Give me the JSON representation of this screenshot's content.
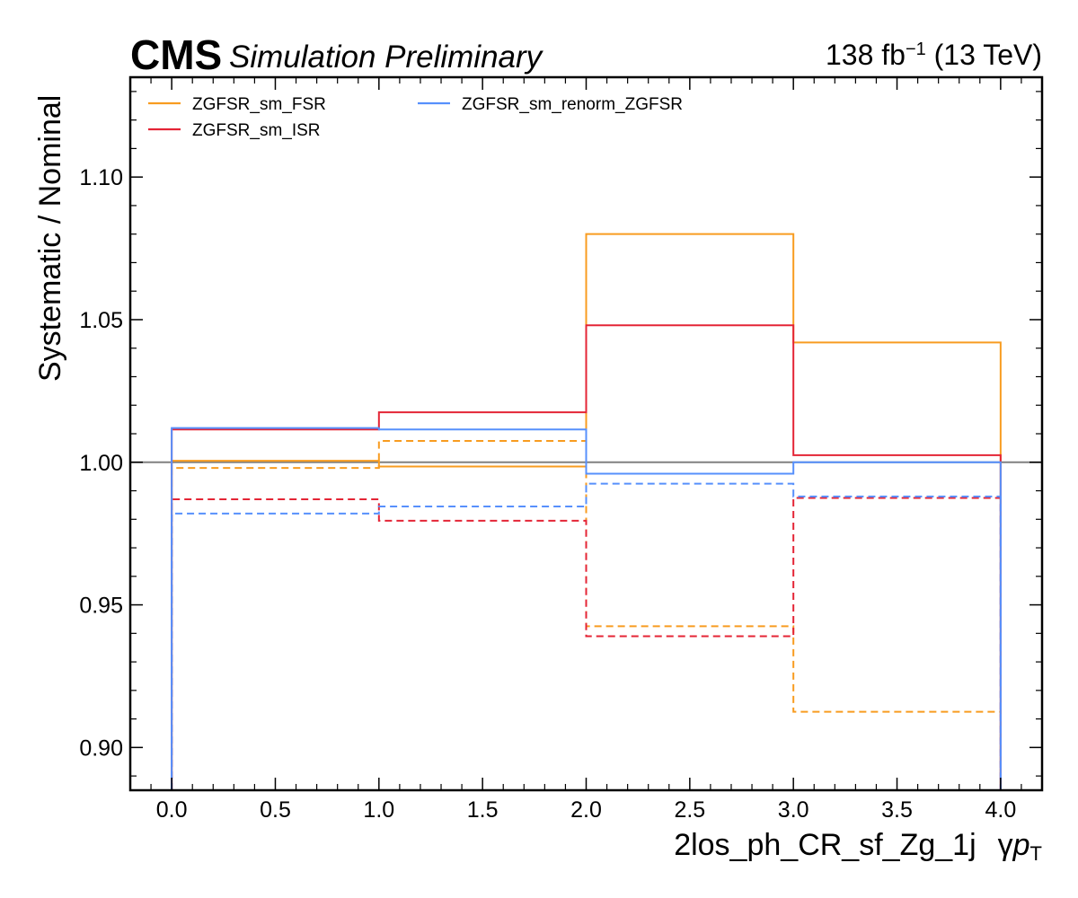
{
  "header": {
    "experiment": "CMS",
    "status": "Simulation Preliminary",
    "lumi_value": "138 fb",
    "lumi_exponent": "−1",
    "energy": " (13 TeV)"
  },
  "chart_data": {
    "type": "line",
    "step": true,
    "xlabel": "2los_ph_CR_sf_Zg_1j",
    "xlabel_variable": "γ",
    "xlabel_variable_italic": "p",
    "xlabel_variable_subscript": "T",
    "ylabel": "Systematic / Nominal",
    "xlim": [
      -0.2,
      4.2
    ],
    "ylim": [
      0.885,
      1.135
    ],
    "xticks": [
      0.0,
      0.5,
      1.0,
      1.5,
      2.0,
      2.5,
      3.0,
      3.5,
      4.0
    ],
    "xtick_labels": [
      "0.0",
      "0.5",
      "1.0",
      "1.5",
      "2.0",
      "2.5",
      "3.0",
      "3.5",
      "4.0"
    ],
    "yticks": [
      0.9,
      0.95,
      1.0,
      1.05,
      1.1
    ],
    "ytick_labels": [
      "0.90",
      "0.95",
      "1.00",
      "1.05",
      "1.10"
    ],
    "bin_edges": [
      0,
      1,
      2,
      3,
      4
    ],
    "reference_line": {
      "y": 1.0,
      "color": "#808080"
    },
    "legend_position": "top-left",
    "grid": false,
    "series": [
      {
        "name": "ZGFSR_sm_FSR",
        "color": "#f89c20",
        "up": [
          1.0005,
          0.9985,
          1.08,
          1.042
        ],
        "down": [
          0.998,
          1.0075,
          0.9425,
          0.9125
        ]
      },
      {
        "name": "ZGFSR_sm_ISR",
        "color": "#e42536",
        "up": [
          1.0115,
          1.0175,
          1.048,
          1.0025
        ],
        "down": [
          0.987,
          0.9795,
          0.939,
          0.9875
        ]
      },
      {
        "name": "ZGFSR_sm_renorm_ZGFSR",
        "color": "#5790fc",
        "up": [
          1.012,
          1.0115,
          0.996,
          1.0
        ],
        "down": [
          0.982,
          0.9845,
          0.9925,
          0.988
        ]
      }
    ]
  }
}
